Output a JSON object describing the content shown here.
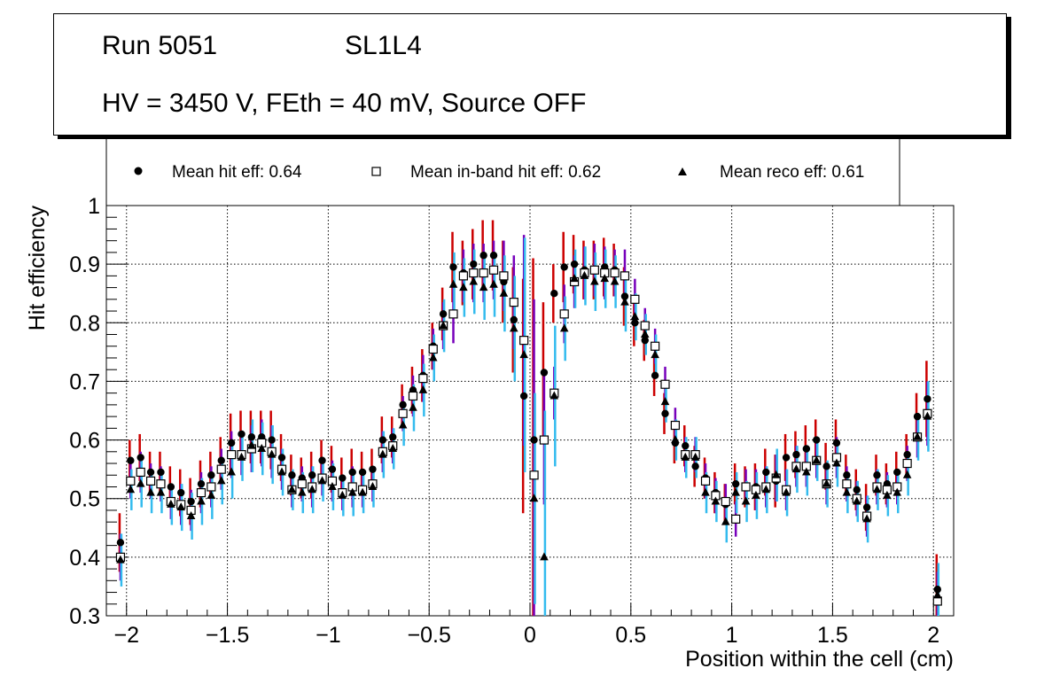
{
  "header": {
    "run": "Run 5051",
    "layer": "SL1L4",
    "conditions": "HV = 3450 V, FEth = 40 mV, Source OFF"
  },
  "legend": {
    "hit": "Mean hit  eff: 0.64",
    "inband": "Mean in-band hit eff: 0.62",
    "reco": "Mean reco eff: 0.61"
  },
  "colors": {
    "hit_error": "#cc0000",
    "inband_error": "#7700bb",
    "reco_error": "#33bbee",
    "marker": "#000000"
  },
  "chart_data": {
    "type": "scatter",
    "xlabel": "Position within the cell (cm)",
    "ylabel": "Hit efficiency",
    "xlim": [
      -2.1,
      2.1
    ],
    "ylim": [
      0.3,
      1.0
    ],
    "x_ticks": [
      -2,
      -1.5,
      -1,
      -0.5,
      0,
      0.5,
      1,
      1.5,
      2
    ],
    "x_tick_labels": [
      "−2",
      "−1.5",
      "−1",
      "−0.5",
      "0",
      "0.5",
      "1",
      "1.5",
      "2"
    ],
    "y_ticks": [
      0.3,
      0.4,
      0.5,
      0.6,
      0.7,
      0.8,
      0.9,
      1.0
    ],
    "y_tick_labels": [
      "0.3",
      "0.4",
      "0.5",
      "0.6",
      "0.7",
      "0.8",
      "0.9",
      "1"
    ],
    "grid": true,
    "x": [
      -2.03,
      -1.98,
      -1.93,
      -1.88,
      -1.83,
      -1.78,
      -1.73,
      -1.68,
      -1.63,
      -1.58,
      -1.53,
      -1.48,
      -1.43,
      -1.38,
      -1.33,
      -1.28,
      -1.23,
      -1.18,
      -1.13,
      -1.08,
      -1.03,
      -0.98,
      -0.93,
      -0.88,
      -0.83,
      -0.78,
      -0.73,
      -0.68,
      -0.63,
      -0.58,
      -0.53,
      -0.48,
      -0.43,
      -0.38,
      -0.33,
      -0.28,
      -0.23,
      -0.18,
      -0.13,
      -0.08,
      -0.03,
      0.02,
      0.07,
      0.12,
      0.17,
      0.22,
      0.27,
      0.32,
      0.37,
      0.42,
      0.47,
      0.52,
      0.57,
      0.62,
      0.67,
      0.72,
      0.77,
      0.82,
      0.87,
      0.92,
      0.97,
      1.02,
      1.07,
      1.12,
      1.17,
      1.22,
      1.27,
      1.32,
      1.37,
      1.42,
      1.47,
      1.52,
      1.57,
      1.62,
      1.67,
      1.72,
      1.77,
      1.82,
      1.87,
      1.92,
      1.97,
      2.02
    ],
    "series": [
      {
        "name": "Mean hit  eff: 0.64",
        "marker": "circle",
        "values": [
          0.425,
          0.565,
          0.57,
          0.545,
          0.545,
          0.52,
          0.51,
          0.495,
          0.525,
          0.54,
          0.565,
          0.595,
          0.61,
          0.605,
          0.605,
          0.6,
          0.57,
          0.54,
          0.535,
          0.54,
          0.565,
          0.55,
          0.535,
          0.545,
          0.545,
          0.55,
          0.6,
          0.605,
          0.66,
          0.685,
          0.71,
          0.76,
          0.815,
          0.895,
          0.885,
          0.9,
          0.915,
          0.915,
          0.87,
          0.805,
          0.675,
          0.6,
          0.715,
          0.85,
          0.895,
          0.9,
          0.89,
          0.89,
          0.895,
          0.89,
          0.845,
          0.8,
          0.77,
          0.71,
          0.645,
          0.595,
          0.59,
          0.555,
          0.535,
          0.51,
          0.49,
          0.525,
          0.52,
          0.52,
          0.545,
          0.53,
          0.57,
          0.575,
          0.585,
          0.6,
          0.555,
          0.595,
          0.54,
          0.515,
          0.485,
          0.54,
          0.525,
          0.545,
          0.575,
          0.64,
          0.67,
          0.345
        ],
        "err": [
          0.05,
          0.035,
          0.04,
          0.035,
          0.035,
          0.035,
          0.04,
          0.04,
          0.04,
          0.04,
          0.04,
          0.05,
          0.04,
          0.045,
          0.045,
          0.05,
          0.04,
          0.035,
          0.035,
          0.04,
          0.035,
          0.04,
          0.035,
          0.04,
          0.035,
          0.035,
          0.04,
          0.035,
          0.035,
          0.04,
          0.045,
          0.04,
          0.045,
          0.06,
          0.055,
          0.06,
          0.06,
          0.06,
          0.07,
          0.09,
          0.2,
          0.31,
          0.12,
          0.05,
          0.06,
          0.05,
          0.05,
          0.05,
          0.05,
          0.045,
          0.05,
          0.04,
          0.035,
          0.035,
          0.035,
          0.035,
          0.035,
          0.035,
          0.035,
          0.035,
          0.035,
          0.035,
          0.035,
          0.04,
          0.04,
          0.045,
          0.04,
          0.04,
          0.04,
          0.035,
          0.04,
          0.04,
          0.035,
          0.035,
          0.04,
          0.035,
          0.035,
          0.035,
          0.035,
          0.04,
          0.065,
          0.06
        ]
      },
      {
        "name": "Mean in-band hit eff: 0.62",
        "marker": "open-square",
        "values": [
          0.4,
          0.53,
          0.545,
          0.53,
          0.525,
          0.495,
          0.49,
          0.48,
          0.51,
          0.52,
          0.55,
          0.575,
          0.575,
          0.585,
          0.595,
          0.58,
          0.55,
          0.515,
          0.525,
          0.52,
          0.535,
          0.53,
          0.51,
          0.52,
          0.515,
          0.525,
          0.58,
          0.59,
          0.645,
          0.675,
          0.705,
          0.755,
          0.795,
          0.815,
          0.88,
          0.885,
          0.885,
          0.89,
          0.88,
          0.835,
          0.77,
          0.54,
          0.6,
          0.68,
          0.815,
          0.87,
          0.885,
          0.89,
          0.885,
          0.885,
          0.88,
          0.84,
          0.795,
          0.76,
          0.695,
          0.625,
          0.575,
          0.575,
          0.53,
          0.505,
          0.495,
          0.465,
          0.52,
          0.515,
          0.52,
          0.535,
          0.515,
          0.555,
          0.555,
          0.565,
          0.525,
          0.57,
          0.525,
          0.5,
          0.47,
          0.52,
          0.515,
          0.52,
          0.56,
          0.605,
          0.645,
          0.325
        ],
        "err": [
          0.04,
          0.03,
          0.035,
          0.03,
          0.03,
          0.03,
          0.035,
          0.035,
          0.035,
          0.035,
          0.035,
          0.04,
          0.035,
          0.04,
          0.04,
          0.045,
          0.035,
          0.03,
          0.03,
          0.035,
          0.03,
          0.035,
          0.03,
          0.035,
          0.03,
          0.03,
          0.035,
          0.03,
          0.03,
          0.035,
          0.04,
          0.035,
          0.04,
          0.05,
          0.045,
          0.05,
          0.05,
          0.05,
          0.06,
          0.08,
          0.18,
          0.3,
          0.11,
          0.045,
          0.05,
          0.045,
          0.045,
          0.045,
          0.045,
          0.04,
          0.045,
          0.035,
          0.03,
          0.03,
          0.03,
          0.03,
          0.03,
          0.03,
          0.03,
          0.03,
          0.03,
          0.03,
          0.03,
          0.035,
          0.035,
          0.04,
          0.035,
          0.035,
          0.035,
          0.03,
          0.035,
          0.035,
          0.03,
          0.03,
          0.035,
          0.03,
          0.03,
          0.03,
          0.03,
          0.035,
          0.055,
          0.05
        ]
      },
      {
        "name": "Mean reco eff: 0.61",
        "marker": "triangle",
        "values": [
          0.395,
          0.515,
          0.525,
          0.51,
          0.51,
          0.49,
          0.485,
          0.47,
          0.495,
          0.505,
          0.53,
          0.545,
          0.57,
          0.59,
          0.585,
          0.575,
          0.545,
          0.515,
          0.51,
          0.515,
          0.53,
          0.52,
          0.505,
          0.51,
          0.51,
          0.52,
          0.575,
          0.585,
          0.625,
          0.655,
          0.685,
          0.74,
          0.795,
          0.865,
          0.86,
          0.87,
          0.86,
          0.865,
          0.85,
          0.79,
          0.745,
          0.5,
          0.4,
          0.675,
          0.79,
          0.875,
          0.88,
          0.87,
          0.875,
          0.87,
          0.835,
          0.81,
          0.78,
          0.745,
          0.665,
          0.6,
          0.57,
          0.57,
          0.51,
          0.495,
          0.46,
          0.51,
          0.495,
          0.505,
          0.515,
          0.54,
          0.51,
          0.55,
          0.545,
          0.565,
          0.525,
          0.56,
          0.51,
          0.495,
          0.465,
          0.515,
          0.505,
          0.51,
          0.54,
          0.605,
          0.64,
          0.335
        ],
        "err": [
          0.045,
          0.035,
          0.04,
          0.035,
          0.035,
          0.035,
          0.04,
          0.04,
          0.04,
          0.04,
          0.04,
          0.045,
          0.04,
          0.045,
          0.045,
          0.05,
          0.04,
          0.035,
          0.035,
          0.04,
          0.035,
          0.04,
          0.035,
          0.04,
          0.035,
          0.035,
          0.04,
          0.035,
          0.035,
          0.04,
          0.045,
          0.04,
          0.045,
          0.055,
          0.05,
          0.055,
          0.055,
          0.055,
          0.065,
          0.09,
          0.2,
          0.18,
          0.25,
          0.12,
          0.055,
          0.05,
          0.05,
          0.05,
          0.05,
          0.045,
          0.05,
          0.04,
          0.035,
          0.035,
          0.035,
          0.035,
          0.035,
          0.035,
          0.035,
          0.035,
          0.035,
          0.035,
          0.035,
          0.04,
          0.04,
          0.045,
          0.04,
          0.04,
          0.04,
          0.035,
          0.04,
          0.04,
          0.035,
          0.035,
          0.04,
          0.035,
          0.035,
          0.035,
          0.035,
          0.04,
          0.06,
          0.055
        ]
      }
    ]
  }
}
